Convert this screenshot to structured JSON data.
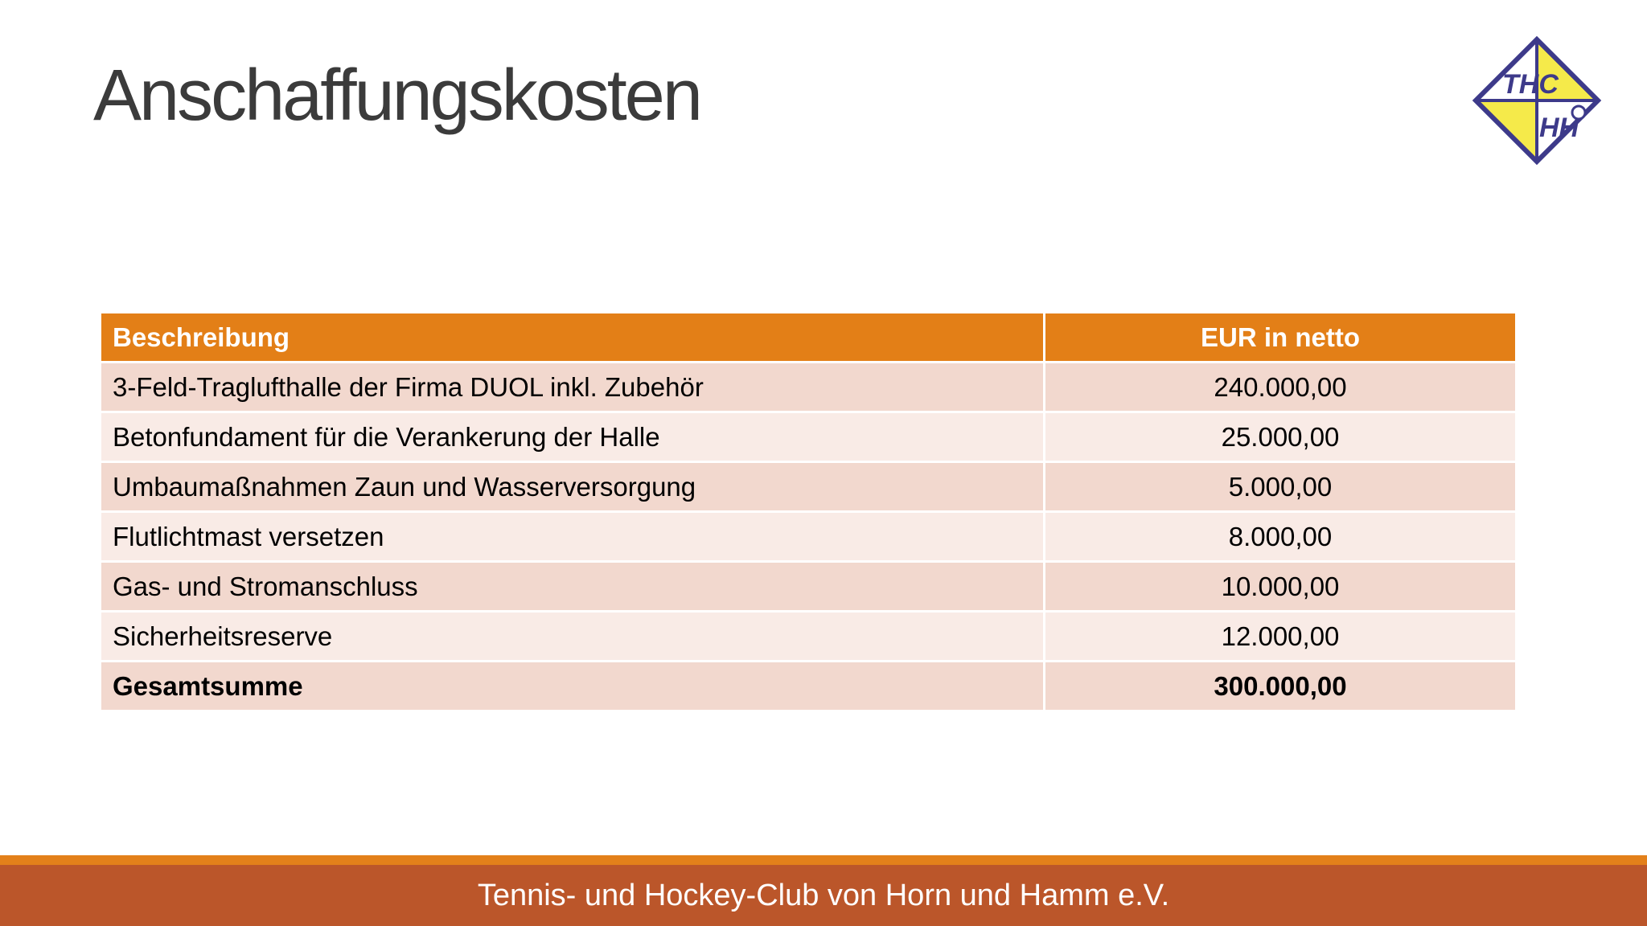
{
  "slide": {
    "title": "Anschaffungskosten",
    "footer_text": "Tennis- und Hockey-Club von Horn und Hamm e.V."
  },
  "logo": {
    "top_text": "THC",
    "bottom_text": "HH",
    "colors": {
      "top_left": "#ffffff",
      "top_right": "#f5ea4a",
      "bottom_left": "#f5ea4a",
      "bottom_right": "#ffffff",
      "stroke": "#3d3a8a"
    }
  },
  "table": {
    "headers": [
      "Beschreibung",
      "EUR in netto"
    ],
    "rows": [
      {
        "description": "3-Feld-Traglufthalle der Firma DUOL inkl. Zubehör",
        "amount": "240.000,00"
      },
      {
        "description": "Betonfundament für die Verankerung der Halle",
        "amount": "25.000,00"
      },
      {
        "description": "Umbaumaßnahmen Zaun und Wasserversorgung",
        "amount": "5.000,00"
      },
      {
        "description": "Flutlichtmast versetzen",
        "amount": "8.000,00"
      },
      {
        "description": "Gas- und Stromanschluss",
        "amount": "10.000,00"
      },
      {
        "description": "Sicherheitsreserve",
        "amount": "12.000,00"
      }
    ],
    "total": {
      "label": "Gesamtsumme",
      "amount": "300.000,00"
    }
  },
  "colors": {
    "header_orange": "#e37f17",
    "row_dark": "#f2d8ce",
    "row_light": "#f9ebe6",
    "footer_stripe": "#e3801a",
    "footer_bar": "#bb562a",
    "title_text": "#3b3b3b"
  }
}
